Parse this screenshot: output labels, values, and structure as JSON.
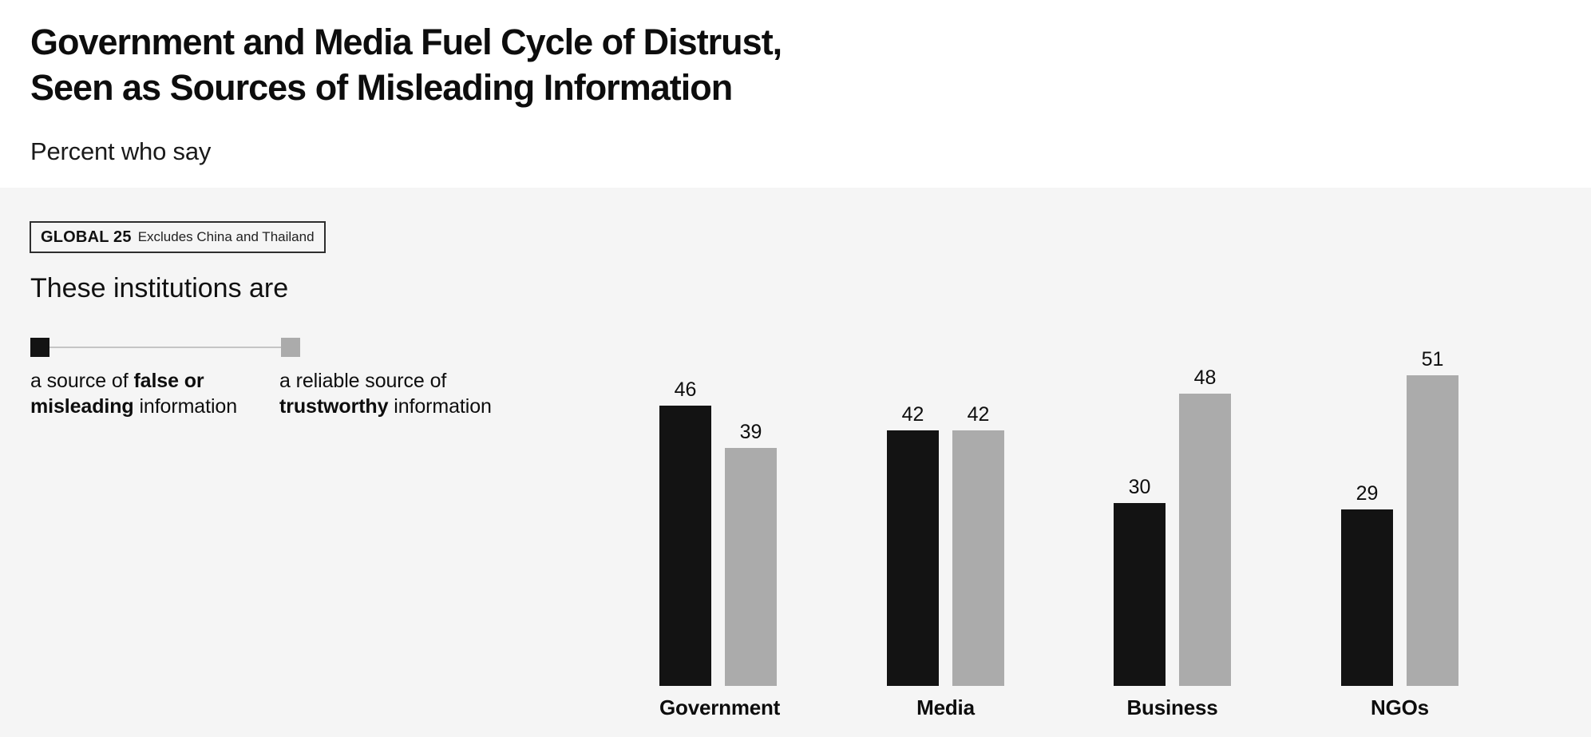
{
  "title": {
    "line1": "Government and Media Fuel Cycle of Distrust,",
    "line2": "Seen as Sources of Misleading Information"
  },
  "subtitle": "Percent who say",
  "panel": {
    "global_tag": {
      "label": "GLOBAL 25",
      "note": "Excludes China and Thailand"
    },
    "lede": "These institutions are"
  },
  "legend": {
    "items": [
      {
        "swatch": "black-square-swatch",
        "color": "#131313",
        "lines": [
          [
            {
              "t": "a source of ",
              "b": 0
            },
            {
              "t": "false or",
              "b": 1
            }
          ],
          [
            {
              "t": "misleading",
              "b": 1
            },
            {
              "t": " information",
              "b": 0
            }
          ]
        ]
      },
      {
        "swatch": "gray-square-swatch",
        "color": "#ababab",
        "lines": [
          [
            {
              "t": "a reliable source of",
              "b": 0
            }
          ],
          [
            {
              "t": "trustworthy",
              "b": 1
            },
            {
              "t": " information",
              "b": 0
            }
          ]
        ]
      }
    ]
  },
  "chart_data": {
    "type": "bar",
    "categories": [
      "Government",
      "Media",
      "Business",
      "NGOs"
    ],
    "series": [
      {
        "name": "a source of false or misleading information",
        "color": "#131313",
        "values": [
          46,
          42,
          30,
          29
        ]
      },
      {
        "name": "a reliable source of trustworthy information",
        "color": "#ababab",
        "values": [
          39,
          42,
          48,
          51
        ]
      }
    ],
    "title": "Government and Media Fuel Cycle of Distrust, Seen as Sources of Misleading Information",
    "xlabel": "",
    "ylabel": "Percent who say",
    "ylim": [
      0,
      60
    ],
    "grid": false,
    "axis_lines": false,
    "value_labels_shown": true,
    "legend_position": "upper-left"
  },
  "colors": {
    "background": "#ffffff",
    "panel": "#f5f5f5",
    "bar_dark": "#131313",
    "bar_gray": "#ababab",
    "connector": "#c5c5c5",
    "text": "#111111"
  }
}
